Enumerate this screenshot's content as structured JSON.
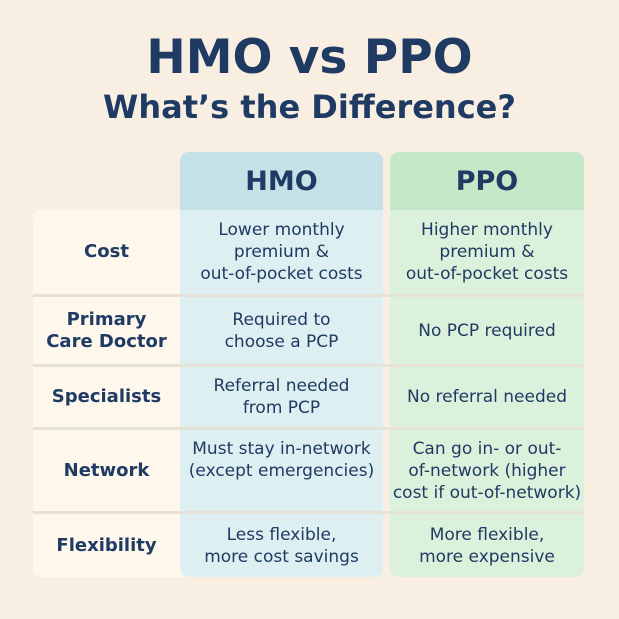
{
  "title": {
    "line1": "HMO vs PPO",
    "line2": "What’s the Difference?"
  },
  "columns": {
    "hmo": "HMO",
    "ppo": "PPO"
  },
  "rows": [
    {
      "label": "Cost",
      "hmo": "Lower monthly\npremium &\nout-of-pocket costs",
      "ppo": "Higher monthly\npremium &\nout-of-pocket costs"
    },
    {
      "label": "Primary\nCare Doctor",
      "hmo": "Required to\nchoose a PCP",
      "ppo": "No PCP required"
    },
    {
      "label": "Specialists",
      "hmo": "Referral needed\nfrom PCP",
      "ppo": "No referral needed"
    },
    {
      "label": "Network",
      "hmo": "Must stay in-network\n(except emergencies)",
      "ppo": "Can go in- or out-\nof-network (higher\ncost if out-of-network)"
    },
    {
      "label": "Flexibility",
      "hmo": "Less flexible,\nmore cost savings",
      "ppo": "More flexible,\nmore expensive"
    }
  ],
  "colors": {
    "text": "#1f3a63",
    "hmo": "#c3e1e6",
    "ppo": "#c5e8c8",
    "background": "#f8efe2"
  }
}
